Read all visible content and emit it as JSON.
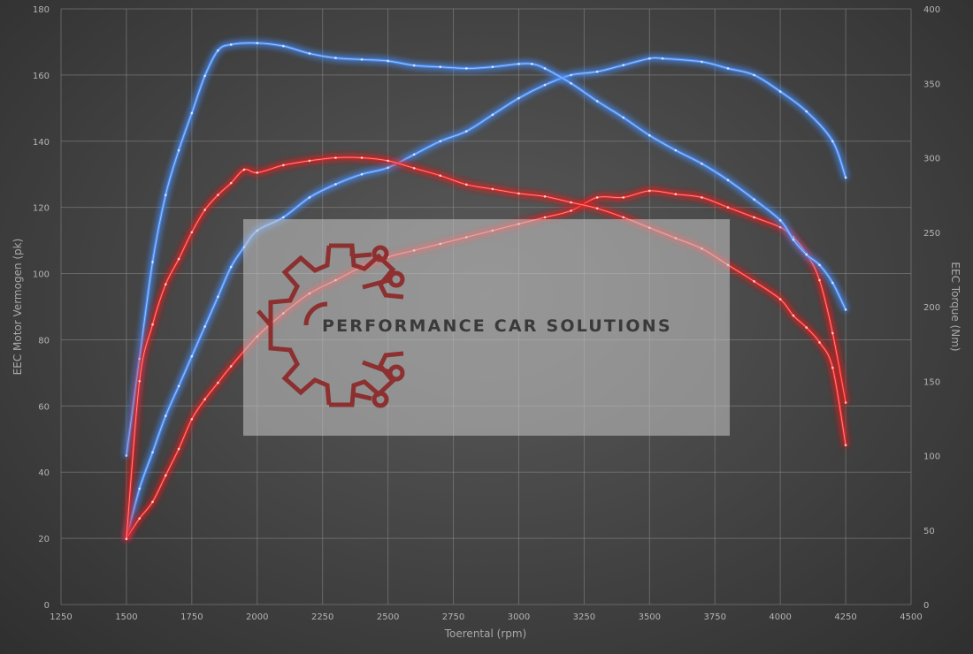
{
  "chart_data": {
    "type": "line",
    "title": "",
    "xlabel": "Toerental (rpm)",
    "ylabel_left": "EEC Motor Vermogen (pk)",
    "ylabel_right": "EEC Torque (Nm)",
    "xlim": [
      1250,
      4500
    ],
    "ylim_left": [
      0,
      180
    ],
    "ylim_right": [
      0,
      400
    ],
    "x_ticks": [
      1250,
      1500,
      1750,
      2000,
      2250,
      2500,
      2750,
      3000,
      3250,
      3500,
      3750,
      4000,
      4250,
      4500
    ],
    "y_left_ticks": [
      0,
      20,
      40,
      60,
      80,
      100,
      120,
      140,
      160,
      180
    ],
    "y_right_ticks": [
      0,
      50,
      100,
      150,
      200,
      250,
      300,
      350,
      400
    ],
    "grid": true,
    "legend": "none",
    "series": [
      {
        "axis": "left",
        "color": "#4a90ff",
        "points": [
          [
            1500,
            20
          ],
          [
            1550,
            35
          ],
          [
            1600,
            46
          ],
          [
            1650,
            57
          ],
          [
            1700,
            66
          ],
          [
            1750,
            75
          ],
          [
            1800,
            84
          ],
          [
            1850,
            93
          ],
          [
            1900,
            102
          ],
          [
            1950,
            108
          ],
          [
            2000,
            113
          ],
          [
            2100,
            117
          ],
          [
            2200,
            123
          ],
          [
            2300,
            127
          ],
          [
            2400,
            130
          ],
          [
            2500,
            132
          ],
          [
            2600,
            136
          ],
          [
            2700,
            140
          ],
          [
            2800,
            143
          ],
          [
            2900,
            148
          ],
          [
            3000,
            153
          ],
          [
            3100,
            157
          ],
          [
            3200,
            160
          ],
          [
            3300,
            161
          ],
          [
            3400,
            163
          ],
          [
            3500,
            165
          ],
          [
            3550,
            165
          ],
          [
            3700,
            164
          ],
          [
            3800,
            162
          ],
          [
            3900,
            160
          ],
          [
            4000,
            155
          ],
          [
            4100,
            149
          ],
          [
            4200,
            140
          ],
          [
            4250,
            129
          ]
        ]
      },
      {
        "axis": "left",
        "color": "#e82020",
        "points": [
          [
            1500,
            20
          ],
          [
            1550,
            26
          ],
          [
            1600,
            31
          ],
          [
            1650,
            39
          ],
          [
            1700,
            47
          ],
          [
            1750,
            56
          ],
          [
            1800,
            62
          ],
          [
            1850,
            67
          ],
          [
            1900,
            72
          ],
          [
            2000,
            81
          ],
          [
            2100,
            88
          ],
          [
            2200,
            94
          ],
          [
            2300,
            98
          ],
          [
            2400,
            102
          ],
          [
            2500,
            105
          ],
          [
            2600,
            107
          ],
          [
            2700,
            109
          ],
          [
            2800,
            111
          ],
          [
            2900,
            113
          ],
          [
            3000,
            115
          ],
          [
            3100,
            117
          ],
          [
            3200,
            119
          ],
          [
            3300,
            123
          ],
          [
            3400,
            123
          ],
          [
            3500,
            125
          ],
          [
            3600,
            124
          ],
          [
            3700,
            123
          ],
          [
            3800,
            120
          ],
          [
            3900,
            117
          ],
          [
            4000,
            114
          ],
          [
            4050,
            111
          ],
          [
            4100,
            106
          ],
          [
            4150,
            98
          ],
          [
            4200,
            82
          ],
          [
            4250,
            61
          ]
        ]
      },
      {
        "axis": "right",
        "color": "#4a90ff",
        "points": [
          [
            1500,
            100
          ],
          [
            1550,
            165
          ],
          [
            1600,
            230
          ],
          [
            1650,
            275
          ],
          [
            1700,
            305
          ],
          [
            1750,
            330
          ],
          [
            1800,
            355
          ],
          [
            1850,
            372
          ],
          [
            1900,
            376
          ],
          [
            2000,
            377
          ],
          [
            2100,
            375
          ],
          [
            2200,
            370
          ],
          [
            2300,
            367
          ],
          [
            2400,
            366
          ],
          [
            2500,
            365
          ],
          [
            2600,
            362
          ],
          [
            2700,
            361
          ],
          [
            2800,
            360
          ],
          [
            2900,
            361
          ],
          [
            3000,
            363
          ],
          [
            3050,
            363
          ],
          [
            3100,
            360
          ],
          [
            3200,
            350
          ],
          [
            3300,
            338
          ],
          [
            3400,
            327
          ],
          [
            3500,
            315
          ],
          [
            3600,
            305
          ],
          [
            3700,
            296
          ],
          [
            3800,
            285
          ],
          [
            3900,
            272
          ],
          [
            4000,
            258
          ],
          [
            4050,
            245
          ],
          [
            4100,
            235
          ],
          [
            4150,
            228
          ],
          [
            4200,
            216
          ],
          [
            4250,
            198
          ]
        ]
      },
      {
        "axis": "right",
        "color": "#e82020",
        "points": [
          [
            1500,
            44
          ],
          [
            1550,
            150
          ],
          [
            1600,
            188
          ],
          [
            1650,
            215
          ],
          [
            1700,
            232
          ],
          [
            1750,
            250
          ],
          [
            1800,
            265
          ],
          [
            1850,
            275
          ],
          [
            1900,
            283
          ],
          [
            1950,
            292
          ],
          [
            2000,
            290
          ],
          [
            2100,
            295
          ],
          [
            2200,
            298
          ],
          [
            2300,
            300
          ],
          [
            2400,
            300
          ],
          [
            2500,
            298
          ],
          [
            2600,
            293
          ],
          [
            2700,
            288
          ],
          [
            2800,
            282
          ],
          [
            2900,
            279
          ],
          [
            3000,
            276
          ],
          [
            3100,
            274
          ],
          [
            3200,
            270
          ],
          [
            3300,
            266
          ],
          [
            3400,
            260
          ],
          [
            3500,
            253
          ],
          [
            3600,
            246
          ],
          [
            3700,
            239
          ],
          [
            3800,
            228
          ],
          [
            3900,
            217
          ],
          [
            4000,
            205
          ],
          [
            4050,
            194
          ],
          [
            4100,
            186
          ],
          [
            4150,
            176
          ],
          [
            4200,
            159
          ],
          [
            4250,
            107
          ]
        ]
      }
    ]
  },
  "watermark": {
    "brand_text": "PERFORMANCE CAR SOLUTIONS",
    "gear_color": "#8b1f1f",
    "box_color": "#c8c8c8"
  }
}
